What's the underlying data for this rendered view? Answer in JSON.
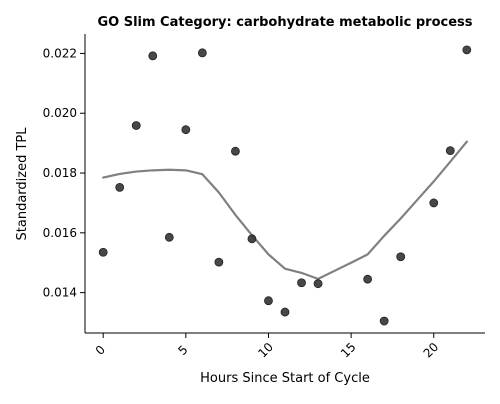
{
  "chart_data": {
    "type": "scatter",
    "title": "GO Slim Category: carbohydrate metabolic process",
    "xlabel": "Hours Since Start of Cycle",
    "ylabel": "Standardized TPL",
    "xlim": [
      -1.1,
      23.1
    ],
    "ylim": [
      0.01265,
      0.02265
    ],
    "x_ticks": [
      0,
      5,
      10,
      15,
      20
    ],
    "y_ticks": [
      0.014,
      0.016,
      0.018,
      0.02,
      0.022
    ],
    "x_tick_labels": [
      "0",
      "5",
      "10",
      "15",
      "20"
    ],
    "y_tick_labels": [
      "0.014",
      "0.016",
      "0.018",
      "0.020",
      "0.022"
    ],
    "grid": false,
    "colors": {
      "points": "#333333",
      "trend": "#808080"
    },
    "points": [
      {
        "x": 0,
        "y": 0.01535
      },
      {
        "x": 1,
        "y": 0.01752
      },
      {
        "x": 2,
        "y": 0.01959
      },
      {
        "x": 3,
        "y": 0.02192
      },
      {
        "x": 4,
        "y": 0.01585
      },
      {
        "x": 5,
        "y": 0.01945
      },
      {
        "x": 6,
        "y": 0.02202
      },
      {
        "x": 7,
        "y": 0.01502
      },
      {
        "x": 8,
        "y": 0.01873
      },
      {
        "x": 9,
        "y": 0.0158
      },
      {
        "x": 10,
        "y": 0.01373
      },
      {
        "x": 11,
        "y": 0.01335
      },
      {
        "x": 12,
        "y": 0.01433
      },
      {
        "x": 13,
        "y": 0.0143
      },
      {
        "x": 16,
        "y": 0.01445
      },
      {
        "x": 17,
        "y": 0.01305
      },
      {
        "x": 18,
        "y": 0.0152
      },
      {
        "x": 20,
        "y": 0.017
      },
      {
        "x": 21,
        "y": 0.01875
      },
      {
        "x": 22,
        "y": 0.02212
      }
    ],
    "trend": [
      {
        "x": 0,
        "y": 0.01785
      },
      {
        "x": 1,
        "y": 0.01797
      },
      {
        "x": 2,
        "y": 0.01805
      },
      {
        "x": 3,
        "y": 0.01809
      },
      {
        "x": 4,
        "y": 0.01811
      },
      {
        "x": 5,
        "y": 0.01809
      },
      {
        "x": 6,
        "y": 0.01796
      },
      {
        "x": 7,
        "y": 0.01735
      },
      {
        "x": 8,
        "y": 0.0166
      },
      {
        "x": 9,
        "y": 0.01592
      },
      {
        "x": 10,
        "y": 0.01528
      },
      {
        "x": 11,
        "y": 0.0148
      },
      {
        "x": 12,
        "y": 0.01466
      },
      {
        "x": 13,
        "y": 0.01446
      },
      {
        "x": 14,
        "y": 0.01473
      },
      {
        "x": 15,
        "y": 0.015
      },
      {
        "x": 16,
        "y": 0.01528
      },
      {
        "x": 17,
        "y": 0.0159
      },
      {
        "x": 18,
        "y": 0.01648
      },
      {
        "x": 19,
        "y": 0.0171
      },
      {
        "x": 20,
        "y": 0.01772
      },
      {
        "x": 21,
        "y": 0.01838
      },
      {
        "x": 22,
        "y": 0.01905
      }
    ]
  }
}
